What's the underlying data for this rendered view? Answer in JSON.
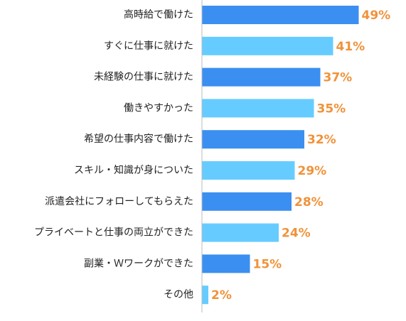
{
  "chart_data": {
    "type": "bar",
    "orientation": "horizontal",
    "categories": [
      "高時給で働けた",
      "すぐに仕事に就けた",
      "未経験の仕事に就けた",
      "働きやすかった",
      "希望の仕事内容で働けた",
      "スキル・知識が身についた",
      "派遣会社にフォローしてもらえた",
      "プライベートと仕事の両立ができた",
      "副業・Ｗワークができた",
      "その他"
    ],
    "values": [
      49,
      41,
      37,
      35,
      32,
      29,
      28,
      24,
      15,
      2
    ],
    "value_labels": [
      "49%",
      "41%",
      "37%",
      "35%",
      "32%",
      "29%",
      "28%",
      "24%",
      "15%",
      "2%"
    ],
    "colors": [
      "#3b8ff0",
      "#66ccff",
      "#3b8ff0",
      "#66ccff",
      "#3b8ff0",
      "#66ccff",
      "#3b8ff0",
      "#66ccff",
      "#3b8ff0",
      "#66ccff"
    ]
  }
}
